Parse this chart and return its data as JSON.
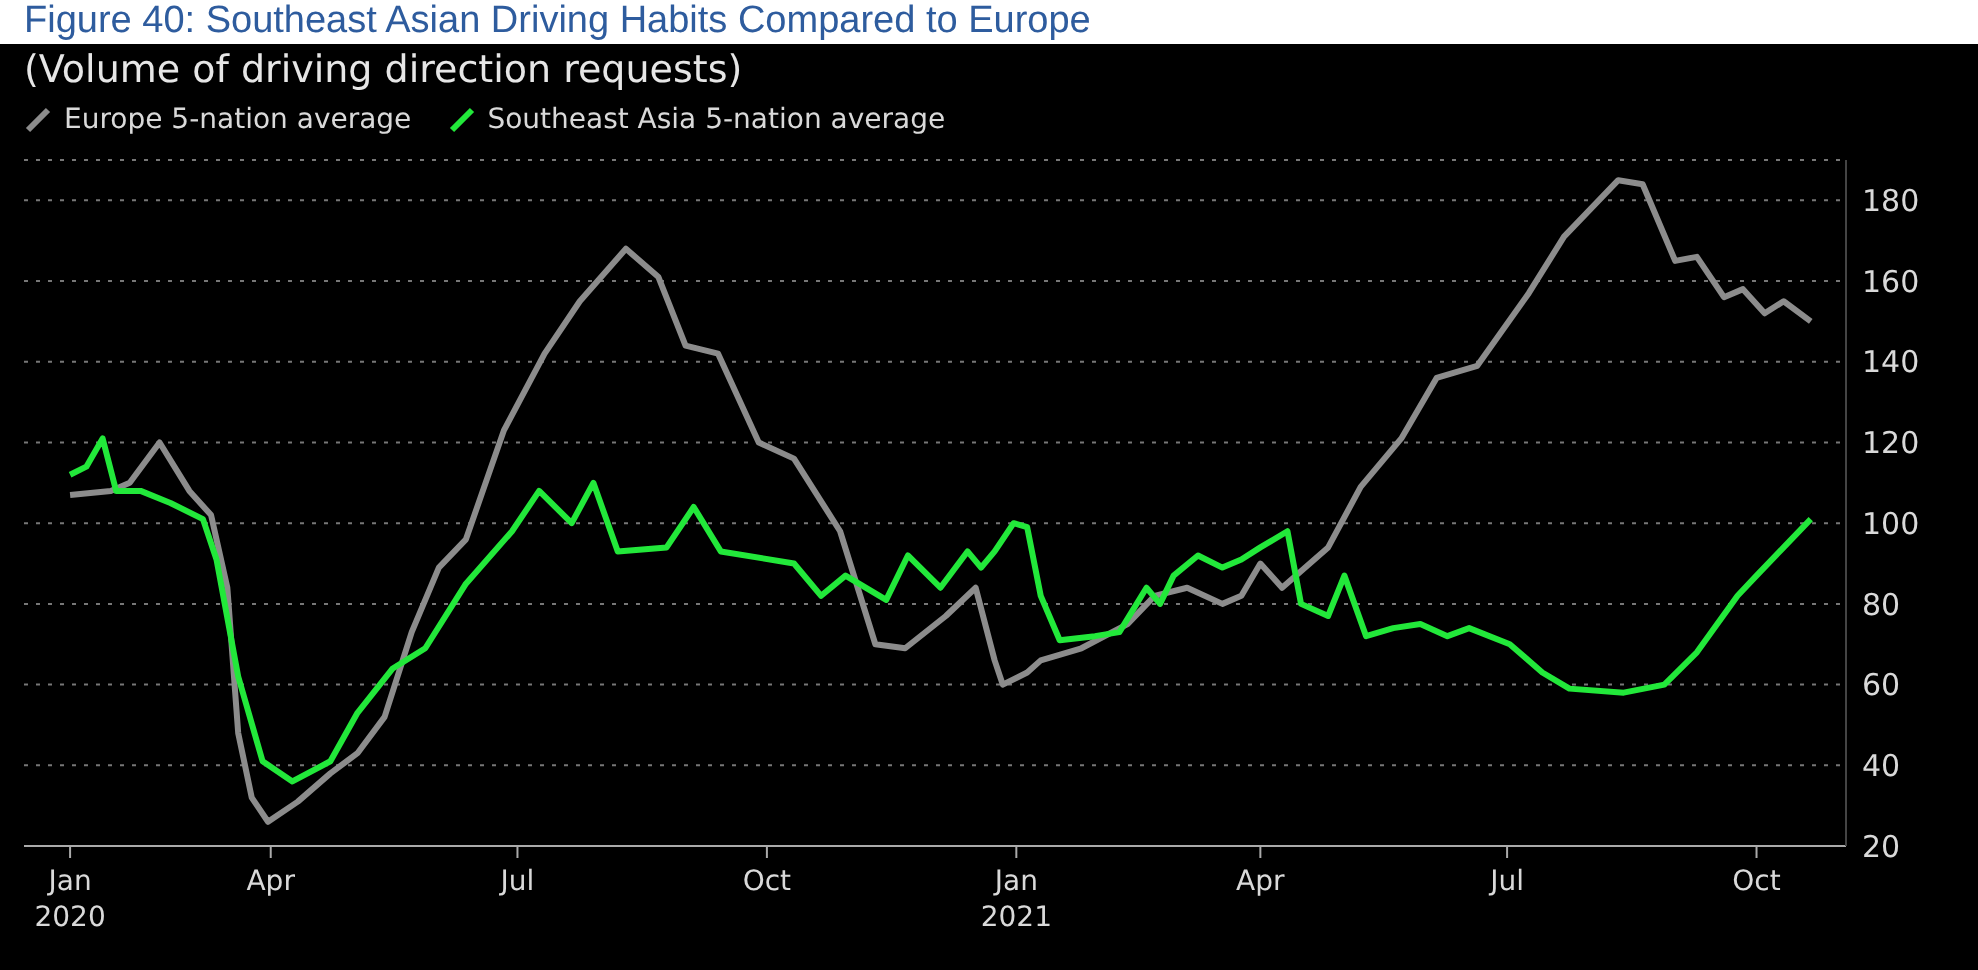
{
  "chart_data": {
    "type": "line",
    "title": "Figure 40: Southeast Asian Driving Habits Compared to Europe",
    "subtitle": "(Volume of driving direction requests)",
    "series": [
      {
        "name": "Europe 5-nation average",
        "color": "#8c8c8c",
        "x": [
          "2020-01-18",
          "2020-02-02",
          "2020-02-09",
          "2020-02-20",
          "2020-03-02",
          "2020-03-10",
          "2020-03-16",
          "2020-03-20",
          "2020-03-25",
          "2020-03-31",
          "2020-04-11",
          "2020-04-23",
          "2020-05-03",
          "2020-05-13",
          "2020-05-23",
          "2020-06-02",
          "2020-06-12",
          "2020-06-26",
          "2020-07-11",
          "2020-07-24",
          "2020-08-10",
          "2020-08-22",
          "2020-09-01",
          "2020-09-13",
          "2020-09-28",
          "2020-10-11",
          "2020-10-28",
          "2020-11-10",
          "2020-11-21",
          "2020-12-06",
          "2020-12-17",
          "2020-12-24",
          "2020-12-27",
          "2021-01-05",
          "2021-01-10",
          "2021-01-25",
          "2021-02-11",
          "2021-02-21",
          "2021-03-05",
          "2021-03-18",
          "2021-03-25",
          "2021-04-01",
          "2021-04-09",
          "2021-04-26",
          "2021-05-08",
          "2021-05-23",
          "2021-06-05",
          "2021-06-20",
          "2021-07-09",
          "2021-07-22",
          "2021-08-11",
          "2021-08-20",
          "2021-09-01",
          "2021-09-09",
          "2021-09-19",
          "2021-09-26",
          "2021-10-04",
          "2021-10-11",
          "2021-10-21"
        ],
        "values": [
          107,
          108,
          110,
          120,
          108,
          102,
          84,
          48,
          32,
          26,
          31,
          38,
          43,
          52,
          73,
          89,
          96,
          123,
          142,
          155,
          168,
          161,
          144,
          142,
          120,
          116,
          98,
          70,
          69,
          77,
          84,
          66,
          60,
          63,
          66,
          69,
          75,
          82,
          84,
          80,
          82,
          90,
          84,
          94,
          109,
          121,
          136,
          139,
          157,
          171,
          185,
          184,
          165,
          166,
          156,
          158,
          152,
          155,
          150
        ]
      },
      {
        "name": "Southeast Asia 5-nation average",
        "color": "#22e83a",
        "x": [
          "2020-01-18",
          "2020-01-24",
          "2020-01-30",
          "2020-02-04",
          "2020-02-13",
          "2020-02-24",
          "2020-03-07",
          "2020-03-12",
          "2020-03-20",
          "2020-03-29",
          "2020-04-09",
          "2020-04-23",
          "2020-05-03",
          "2020-05-16",
          "2020-05-28",
          "2020-06-12",
          "2020-06-29",
          "2020-07-09",
          "2020-07-21",
          "2020-07-29",
          "2020-08-07",
          "2020-08-25",
          "2020-09-04",
          "2020-09-14",
          "2020-10-11",
          "2020-10-21",
          "2020-10-30",
          "2020-11-14",
          "2020-11-22",
          "2020-12-04",
          "2020-12-14",
          "2020-12-19",
          "2020-12-24",
          "2020-12-31",
          "2021-01-05",
          "2021-01-10",
          "2021-01-17",
          "2021-01-30",
          "2021-02-08",
          "2021-02-18",
          "2021-02-23",
          "2021-02-28",
          "2021-03-09",
          "2021-03-18",
          "2021-03-25",
          "2021-04-01",
          "2021-04-11",
          "2021-04-16",
          "2021-04-26",
          "2021-05-02",
          "2021-05-10",
          "2021-05-20",
          "2021-05-30",
          "2021-06-09",
          "2021-06-17",
          "2021-07-02",
          "2021-07-14",
          "2021-07-24",
          "2021-08-13",
          "2021-08-28",
          "2021-09-09",
          "2021-09-24",
          "2021-10-01",
          "2021-10-11",
          "2021-10-21"
        ],
        "values": [
          112,
          114,
          121,
          108,
          108,
          105,
          101,
          91,
          62,
          41,
          36,
          41,
          53,
          64,
          69,
          85,
          98,
          108,
          100,
          110,
          93,
          94,
          104,
          93,
          90,
          82,
          87,
          81,
          92,
          84,
          93,
          89,
          93,
          100,
          99,
          82,
          71,
          72,
          73,
          84,
          80,
          87,
          92,
          89,
          91,
          94,
          98,
          80,
          77,
          87,
          72,
          74,
          75,
          72,
          74,
          70,
          63,
          59,
          58,
          60,
          68,
          82,
          87,
          94,
          101
        ]
      }
    ],
    "xlim": [
      "2020-01-01",
      "2021-11-03"
    ],
    "xticks": [
      {
        "value": "2020-01-18",
        "label": "Jan\n2020"
      },
      {
        "value": "2020-04-01",
        "label": "Apr"
      },
      {
        "value": "2020-07-01",
        "label": "Jul"
      },
      {
        "value": "2020-10-01",
        "label": "Oct"
      },
      {
        "value": "2021-01-01",
        "label": "Jan\n2021"
      },
      {
        "value": "2021-04-01",
        "label": "Apr"
      },
      {
        "value": "2021-07-01",
        "label": "Jul"
      },
      {
        "value": "2021-10-01",
        "label": "Oct"
      }
    ],
    "ylim": [
      20,
      190
    ],
    "yticks": [
      20,
      40,
      60,
      80,
      100,
      120,
      140,
      160,
      180
    ],
    "grid": "y",
    "legend": "top left",
    "marker": "none",
    "line_style": "solid"
  }
}
